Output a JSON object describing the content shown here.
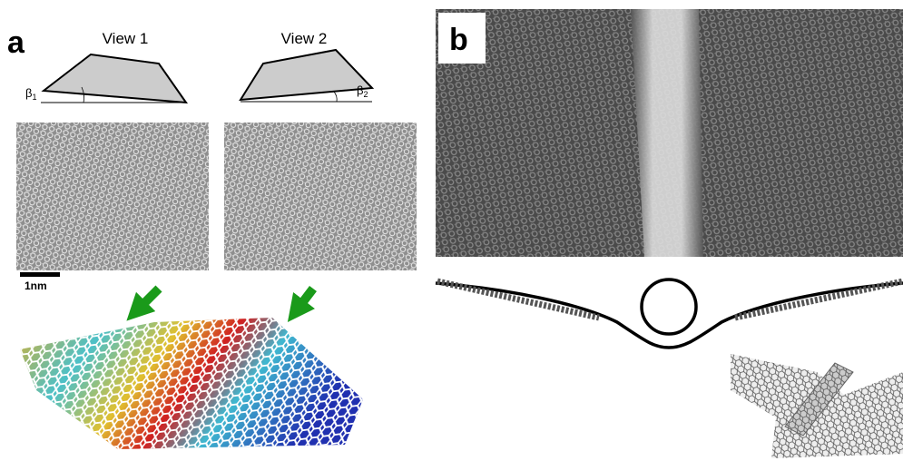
{
  "panel_a": {
    "label": "a",
    "view1": {
      "title": "View 1",
      "angle": {
        "symbol": "β",
        "sub": "1"
      }
    },
    "view2": {
      "title": "View 2",
      "angle": {
        "symbol": "β",
        "sub": "2"
      }
    },
    "scale_bar": "1nm"
  },
  "panel_b": {
    "label": "b"
  }
}
